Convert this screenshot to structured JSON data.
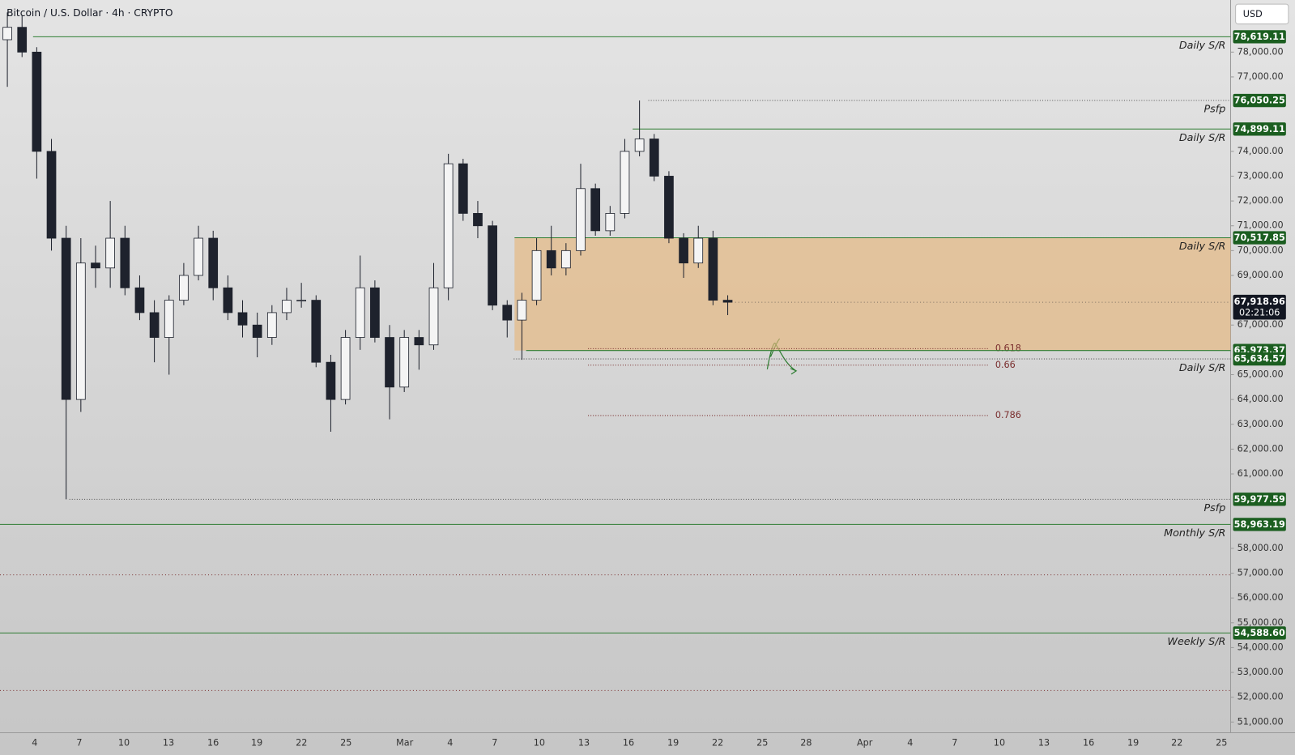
{
  "chart_data": {
    "type": "candlestick",
    "title": "Bitcoin / U.S. Dollar · 4h · CRYPTO",
    "currency": "USD",
    "ylim": [
      50570,
      80100
    ],
    "yticks": [
      {
        "value": 51000,
        "label": "51,000.00"
      },
      {
        "value": 52000,
        "label": "52,000.00"
      },
      {
        "value": 53000,
        "label": "53,000.00"
      },
      {
        "value": 54000,
        "label": "54,000.00"
      },
      {
        "value": 55000,
        "label": "55,000.00"
      },
      {
        "value": 56000,
        "label": "56,000.00"
      },
      {
        "value": 57000,
        "label": "57,000.00"
      },
      {
        "value": 58000,
        "label": "58,000.00"
      },
      {
        "value": 61000,
        "label": "61,000.00"
      },
      {
        "value": 62000,
        "label": "62,000.00"
      },
      {
        "value": 63000,
        "label": "63,000.00"
      },
      {
        "value": 64000,
        "label": "64,000.00"
      },
      {
        "value": 65000,
        "label": "65,000.00"
      },
      {
        "value": 67000,
        "label": "67,000.00"
      },
      {
        "value": 69000,
        "label": "69,000.00"
      },
      {
        "value": 70000,
        "label": "70,000.00"
      },
      {
        "value": 71000,
        "label": "71,000.00"
      },
      {
        "value": 72000,
        "label": "72,000.00"
      },
      {
        "value": 73000,
        "label": "73,000.00"
      },
      {
        "value": 74000,
        "label": "74,000.00"
      },
      {
        "value": 77000,
        "label": "77,000.00"
      },
      {
        "value": 78000,
        "label": "78,000.00"
      }
    ],
    "xticks": [
      "4",
      "7",
      "10",
      "13",
      "16",
      "19",
      "22",
      "25",
      "Mar",
      "4",
      "7",
      "10",
      "13",
      "16",
      "19",
      "22",
      "25",
      "28",
      "Apr",
      "4",
      "7",
      "10",
      "13",
      "16",
      "19",
      "22",
      "25"
    ],
    "up_color": "#f4f4f4",
    "down_color": "#1e222d",
    "candles": {
      "open": [
        78500,
        79000,
        78000,
        74000,
        70500,
        64000,
        69500,
        69300,
        70500,
        68500,
        67500,
        66500,
        68000,
        69000,
        70500,
        68500,
        67500,
        67000,
        66500,
        67500,
        68000,
        68000,
        65500,
        64000,
        66500,
        68500,
        66500,
        64500,
        66500,
        66200,
        68500,
        73500,
        71500,
        71000,
        67800,
        67200,
        68000,
        70000,
        69300,
        70000,
        72500,
        70800,
        71500,
        74000,
        74500,
        73000,
        70500,
        69500,
        70500,
        68000
      ],
      "high": [
        79600,
        79500,
        78200,
        74500,
        71000,
        70500,
        70200,
        72000,
        71000,
        69000,
        68000,
        68200,
        69500,
        71000,
        70800,
        69000,
        68000,
        67500,
        67800,
        68500,
        68700,
        68200,
        65800,
        66800,
        69800,
        68800,
        67000,
        66800,
        66800,
        69500,
        73900,
        73700,
        72000,
        71200,
        68000,
        68300,
        70500,
        71000,
        70300,
        73500,
        72700,
        71800,
        74500,
        76050,
        74700,
        73200,
        70700,
        71000,
        70800,
        68200
      ],
      "low": [
        76600,
        77800,
        72900,
        70000,
        59978,
        63500,
        68500,
        68500,
        68200,
        67200,
        65500,
        65000,
        67800,
        68800,
        68000,
        67200,
        66500,
        65700,
        66200,
        67200,
        67700,
        65300,
        62700,
        63800,
        66000,
        66300,
        63200,
        64300,
        65200,
        66000,
        68000,
        71200,
        70500,
        67600,
        66500,
        65600,
        67800,
        69000,
        69000,
        69800,
        70600,
        70600,
        71300,
        73800,
        72800,
        70300,
        68900,
        69300,
        67800,
        67400
      ],
      "close": [
        79000,
        78000,
        74000,
        70500,
        64000,
        69500,
        69300,
        70500,
        68500,
        67500,
        66500,
        68000,
        69000,
        70500,
        68500,
        67500,
        67000,
        66500,
        67500,
        68000,
        68000,
        65500,
        64000,
        66500,
        68500,
        66500,
        64500,
        66500,
        66200,
        68500,
        73500,
        71500,
        71000,
        67800,
        67200,
        68000,
        70000,
        69300,
        70000,
        72500,
        70800,
        71500,
        74000,
        74500,
        73000,
        70500,
        69500,
        70500,
        68000,
        67918.96
      ]
    },
    "last_price": {
      "value": 67918.96,
      "label": "67,918.96",
      "countdown": "02:21:06"
    },
    "level_color": "#2e7d32",
    "tag_color": "#1b5e20",
    "levels": [
      {
        "value": 78619.11,
        "label": "78,619.11",
        "text": "Daily S/R",
        "style": "solid"
      },
      {
        "value": 76050.25,
        "label": "76,050.25",
        "text": "Psfp",
        "style": "dotted"
      },
      {
        "value": 74899.11,
        "label": "74,899.11",
        "text": "Daily S/R",
        "style": "solid"
      },
      {
        "value": 70517.85,
        "label": "70,517.85",
        "text": "Daily S/R",
        "style": "solid"
      },
      {
        "value": 65973.37,
        "label": "65,973.37",
        "style": "solid"
      },
      {
        "value": 65634.57,
        "label": "65,634.57",
        "text": "Daily S/R",
        "style": "dotted"
      },
      {
        "value": 59977.59,
        "label": "59,977.59",
        "text": "Psfp",
        "style": "dotted"
      },
      {
        "value": 58963.19,
        "label": "58,963.19",
        "text": "Monthly S/R",
        "style": "solid"
      },
      {
        "value": 54588.6,
        "label": "54,588.60",
        "text": "Weekly S/R",
        "style": "solid"
      }
    ],
    "zone_color": "#e7b77c",
    "fib_color": "#7a2e2e",
    "fib": [
      {
        "ratio": 0.618,
        "price": 66049
      },
      {
        "ratio": 0.66,
        "price": 65383
      },
      {
        "ratio": 0.786,
        "price": 63353
      }
    ],
    "dotted_levels": [
      56930,
      52270
    ]
  }
}
